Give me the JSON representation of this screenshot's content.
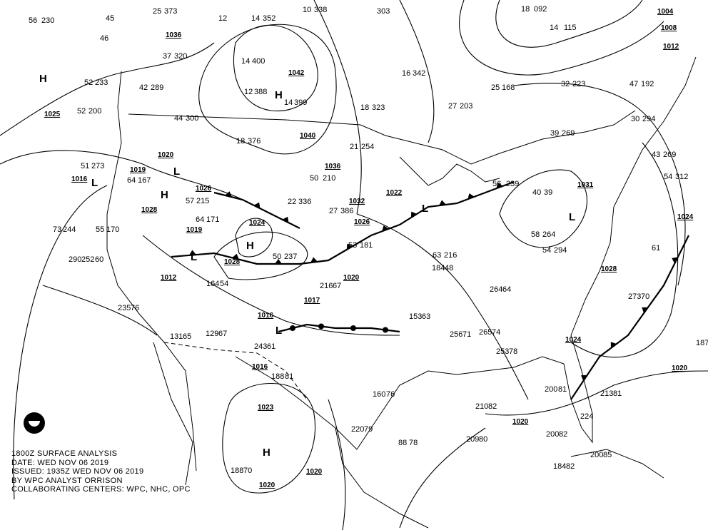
{
  "caption": {
    "line1": "1800Z SURFACE ANALYSIS",
    "line2": "DATE: WED NOV 06 2019",
    "line3": "ISSUED: 1935Z WED NOV 06 2019",
    "line4": "BY WPC ANALYST ORRISON",
    "line5": "COLLABORATING CENTERS: WPC, NHC, OPC"
  },
  "logo": "NOAA",
  "pressure_centers": [
    "H",
    "H",
    "H",
    "H",
    "H",
    "L",
    "L",
    "L",
    "L",
    "L",
    "L"
  ],
  "isobar_labels": [
    "1036",
    "1042",
    "1040",
    "1036",
    "1025",
    "1020",
    "1019",
    "1016",
    "1028",
    "1026",
    "1019",
    "1024",
    "1028",
    "1032",
    "1022",
    "1026",
    "1020",
    "1012",
    "1016",
    "1017",
    "1016",
    "1023",
    "1020",
    "1020",
    "1020",
    "1020",
    "1024",
    "1024",
    "1031",
    "1028",
    "1004",
    "1008",
    "1012"
  ],
  "station_values": [
    "56",
    "230",
    "45",
    "25",
    "373",
    "12",
    "14",
    "352",
    "10",
    "338",
    "303",
    "18",
    "092",
    "14",
    "115",
    "46",
    "37",
    "320",
    "14",
    "400",
    "16",
    "342",
    "42",
    "289",
    "52",
    "233",
    "12",
    "388",
    "14",
    "399",
    "18",
    "323",
    "27",
    "203",
    "25",
    "168",
    "32",
    "223",
    "47",
    "192",
    "52",
    "200",
    "44",
    "300",
    "18",
    "376",
    "21",
    "254",
    "39",
    "269",
    "43",
    "269",
    "51",
    "273",
    "64",
    "167",
    "57",
    "215",
    "50",
    "210",
    "22",
    "336",
    "27",
    "386",
    "30",
    "294",
    "56",
    "239",
    "40",
    "39",
    "54",
    "312",
    "73",
    "244",
    "55",
    "170",
    "64",
    "171",
    "50",
    "237",
    "53",
    "181",
    "63",
    "216",
    "58",
    "264",
    "54",
    "294",
    "61",
    "290",
    "252",
    "60",
    "164",
    "54",
    "216",
    "67",
    "184",
    "48",
    "264",
    "64",
    "273",
    "70",
    "235",
    "76",
    "131",
    "65",
    "129",
    "67",
    "153",
    "63",
    "256",
    "71",
    "265",
    "74",
    "253",
    "78",
    "243",
    "61",
    "188",
    "81",
    "160",
    "76",
    "220",
    "79",
    "210",
    "82",
    "200",
    "81",
    "213",
    "81",
    "200",
    "85",
    "184",
    "82",
    "188",
    "70",
    "224",
    "88",
    "78",
    "209",
    "80",
    "200",
    "82",
    "187",
    "80"
  ],
  "colors": {
    "lines": "#000000",
    "background": "#ffffff"
  }
}
